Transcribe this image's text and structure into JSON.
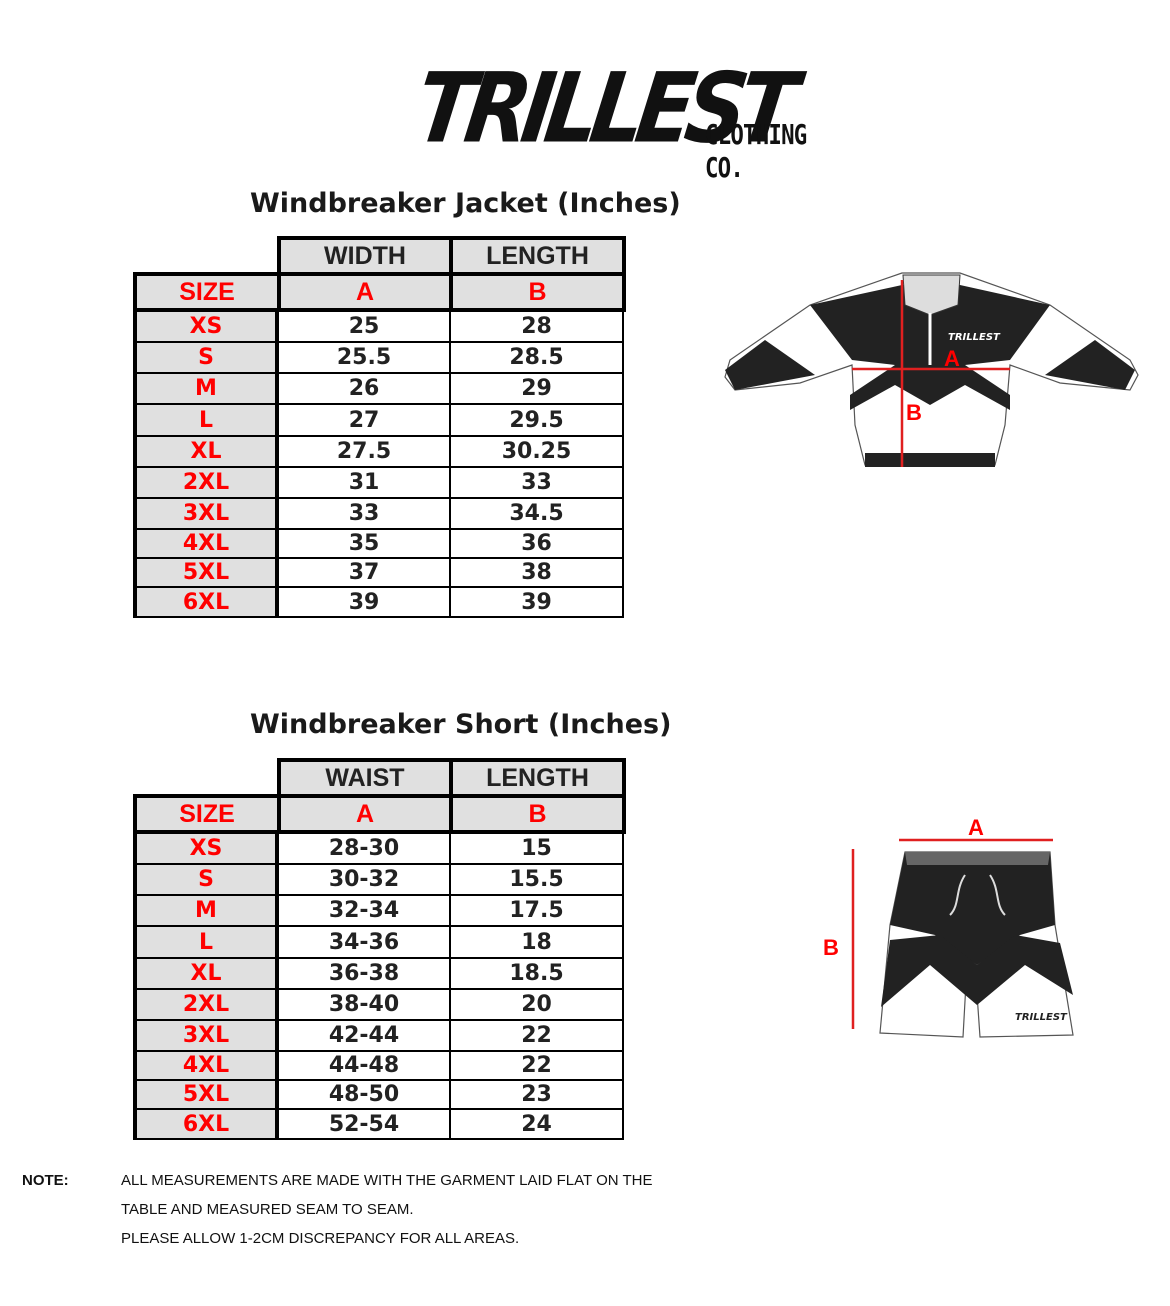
{
  "brand": {
    "logo_text": "TRILLEST",
    "subtitle": "CLOTHING CO."
  },
  "jacket": {
    "title": "Windbreaker Jacket (Inches)",
    "headers": {
      "a": "WIDTH",
      "b": "LENGTH"
    },
    "subheaders": {
      "size": "SIZE",
      "a": "A",
      "b": "B"
    },
    "rows": [
      {
        "size": "XS",
        "a": "25",
        "b": "28"
      },
      {
        "size": "S",
        "a": "25.5",
        "b": "28.5"
      },
      {
        "size": "M",
        "a": "26",
        "b": "29"
      },
      {
        "size": "L",
        "a": "27",
        "b": "29.5"
      },
      {
        "size": "XL",
        "a": "27.5",
        "b": "30.25"
      },
      {
        "size": "2XL",
        "a": "31",
        "b": "33"
      },
      {
        "size": "3XL",
        "a": "33",
        "b": "34.5"
      },
      {
        "size": "4XL",
        "a": "35",
        "b": "36"
      },
      {
        "size": "5XL",
        "a": "37",
        "b": "38"
      },
      {
        "size": "6XL",
        "a": "39",
        "b": "39"
      }
    ],
    "diagram": {
      "label_a": "A",
      "label_b": "B",
      "chest_logo": "TRILLEST"
    }
  },
  "short": {
    "title": "Windbreaker Short (Inches)",
    "headers": {
      "a": "WAIST",
      "b": "LENGTH"
    },
    "subheaders": {
      "size": "SIZE",
      "a": "A",
      "b": "B"
    },
    "rows": [
      {
        "size": "XS",
        "a": "28-30",
        "b": "15"
      },
      {
        "size": "S",
        "a": "30-32",
        "b": "15.5"
      },
      {
        "size": "M",
        "a": "32-34",
        "b": "17.5"
      },
      {
        "size": "L",
        "a": "34-36",
        "b": "18"
      },
      {
        "size": "XL",
        "a": "36-38",
        "b": "18.5"
      },
      {
        "size": "2XL",
        "a": "38-40",
        "b": "20"
      },
      {
        "size": "3XL",
        "a": "42-44",
        "b": "22"
      },
      {
        "size": "4XL",
        "a": "44-48",
        "b": "22"
      },
      {
        "size": "5XL",
        "a": "48-50",
        "b": "23"
      },
      {
        "size": "6XL",
        "a": "52-54",
        "b": "24"
      }
    ],
    "diagram": {
      "label_a": "A",
      "label_b": "B",
      "leg_logo": "TRILLEST"
    }
  },
  "note": {
    "label": "NOTE:",
    "lines": [
      "ALL MEASUREMENTS ARE MADE WITH THE GARMENT LAID FLAT ON THE",
      "TABLE AND MEASURED SEAM TO SEAM.",
      "PLEASE ALLOW 1-2CM DISCREPANCY FOR ALL AREAS."
    ]
  },
  "colors": {
    "accent": "#ff0000",
    "header_bg": "#e0e0e0",
    "ink": "#222222"
  }
}
